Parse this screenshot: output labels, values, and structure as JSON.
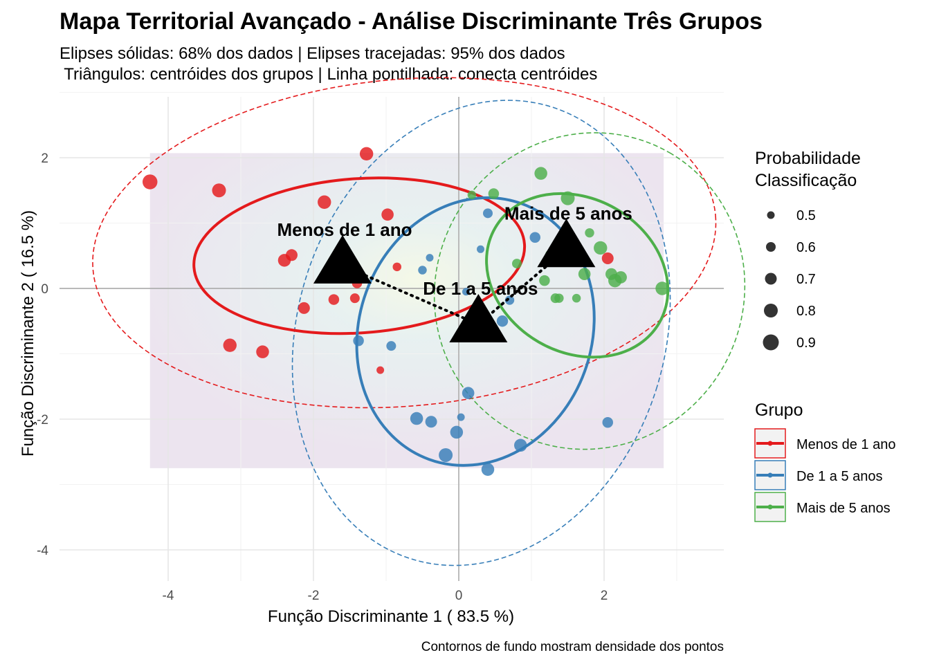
{
  "chart_data": {
    "type": "scatter",
    "title": "Mapa Territorial Avançado - Análise Discriminante Três Grupos",
    "subtitle_lines": [
      "Elipses sólidas: 68% dos dados | Elipses tracejadas: 95% dos dados",
      " Triângulos: centróides dos grupos | Linha pontilhada: conecta centróides"
    ],
    "xlabel": "Função Discriminante 1 ( 83.5 %)",
    "ylabel": "Função Discriminante 2 ( 16.5 %)",
    "caption": "Contornos de fundo mostram densidade dos pontos",
    "xlim": [
      -5.0,
      3.6
    ],
    "ylim": [
      -4.2,
      2.9
    ],
    "x_ticks": [
      -4,
      -2,
      0,
      2
    ],
    "y_ticks": [
      -4,
      -2,
      0,
      2
    ],
    "grid": true,
    "reference_lines": {
      "x": 0,
      "y": 0
    },
    "density_region": {
      "x": [
        -4.25,
        2.82
      ],
      "y": [
        -2.75,
        2.07
      ]
    },
    "legend_size": {
      "title_lines": [
        "Probabilidade",
        "Classificação"
      ],
      "entries": [
        0.5,
        0.6,
        0.7,
        0.8,
        0.9
      ]
    },
    "legend_group": {
      "title": "Grupo",
      "entries": [
        "Menos de 1 ano",
        "De 1 a 5 anos",
        "Mais de 5 anos"
      ]
    },
    "series": [
      {
        "name": "Menos de 1 ano",
        "color": "#e41a1c",
        "centroid": [
          -1.6,
          0.35
        ],
        "ellipse68": {
          "cx": -1.37,
          "cy": 0.5,
          "rx": 2.28,
          "ry": 1.18,
          "angle": -4
        },
        "ellipse95": {
          "cx": -0.75,
          "cy": 0.7,
          "rx": 4.3,
          "ry": 2.5,
          "angle": -5
        },
        "points": [
          [
            -4.25,
            1.63,
            0.85
          ],
          [
            -3.3,
            1.5,
            0.8
          ],
          [
            -1.27,
            2.06,
            0.78
          ],
          [
            -1.85,
            1.32,
            0.78
          ],
          [
            -0.98,
            1.13,
            0.72
          ],
          [
            -2.3,
            0.51,
            0.7
          ],
          [
            -2.4,
            0.43,
            0.75
          ],
          [
            -0.85,
            0.33,
            0.55
          ],
          [
            -1.4,
            0.08,
            0.62
          ],
          [
            -1.43,
            -0.15,
            0.6
          ],
          [
            -1.72,
            -0.17,
            0.65
          ],
          [
            -2.13,
            -0.3,
            0.7
          ],
          [
            -3.15,
            -0.87,
            0.78
          ],
          [
            -2.7,
            -0.97,
            0.75
          ],
          [
            -1.08,
            -1.25,
            0.5
          ],
          [
            2.05,
            0.46,
            0.7
          ]
        ]
      },
      {
        "name": "De 1 a 5 anos",
        "color": "#377eb8",
        "centroid": [
          0.27,
          -0.55
        ],
        "ellipse68": {
          "cx": 0.23,
          "cy": -0.66,
          "rx": 1.6,
          "ry": 2.08,
          "angle": 20
        },
        "ellipse95": {
          "cx": 0.31,
          "cy": -0.68,
          "rx": 2.53,
          "ry": 3.62,
          "angle": 17
        },
        "points": [
          [
            0.4,
            1.15,
            0.6
          ],
          [
            0.3,
            0.6,
            0.5
          ],
          [
            -0.4,
            0.47,
            0.5
          ],
          [
            -0.5,
            0.28,
            0.55
          ],
          [
            1.05,
            0.78,
            0.65
          ],
          [
            0.1,
            -0.05,
            0.5
          ],
          [
            0.7,
            -0.18,
            0.58
          ],
          [
            0.6,
            -0.5,
            0.68
          ],
          [
            -1.38,
            -0.8,
            0.65
          ],
          [
            -0.93,
            -0.88,
            0.6
          ],
          [
            0.13,
            -1.6,
            0.72
          ],
          [
            0.03,
            -1.97,
            0.5
          ],
          [
            -0.58,
            -1.99,
            0.75
          ],
          [
            -0.38,
            -2.04,
            0.7
          ],
          [
            -0.03,
            -2.2,
            0.75
          ],
          [
            -0.18,
            -2.55,
            0.8
          ],
          [
            0.85,
            -2.4,
            0.75
          ],
          [
            0.4,
            -2.77,
            0.75
          ],
          [
            2.05,
            -2.05,
            0.65
          ]
        ]
      },
      {
        "name": "Mais de 5 anos",
        "color": "#4daf4a",
        "centroid": [
          1.48,
          0.6
        ],
        "ellipse68": {
          "cx": 1.63,
          "cy": 0.2,
          "rx": 1.06,
          "ry": 1.45,
          "angle": -60
        },
        "ellipse95": {
          "cx": 1.8,
          "cy": -0.04,
          "rx": 2.2,
          "ry": 2.35,
          "angle": -60
        },
        "points": [
          [
            1.13,
            1.76,
            0.75
          ],
          [
            0.18,
            1.43,
            0.55
          ],
          [
            0.48,
            1.45,
            0.65
          ],
          [
            1.5,
            1.38,
            0.8
          ],
          [
            1.8,
            0.85,
            0.58
          ],
          [
            0.8,
            0.38,
            0.6
          ],
          [
            1.95,
            0.62,
            0.78
          ],
          [
            2.1,
            0.22,
            0.7
          ],
          [
            1.25,
            0.52,
            0.55
          ],
          [
            1.73,
            0.22,
            0.72
          ],
          [
            1.18,
            0.12,
            0.65
          ],
          [
            2.15,
            0.12,
            0.78
          ],
          [
            2.23,
            0.17,
            0.72
          ],
          [
            2.8,
            0.0,
            0.78
          ],
          [
            1.38,
            -0.15,
            0.58
          ],
          [
            1.62,
            -0.15,
            0.55
          ],
          [
            1.33,
            -0.15,
            0.6
          ]
        ]
      }
    ]
  }
}
